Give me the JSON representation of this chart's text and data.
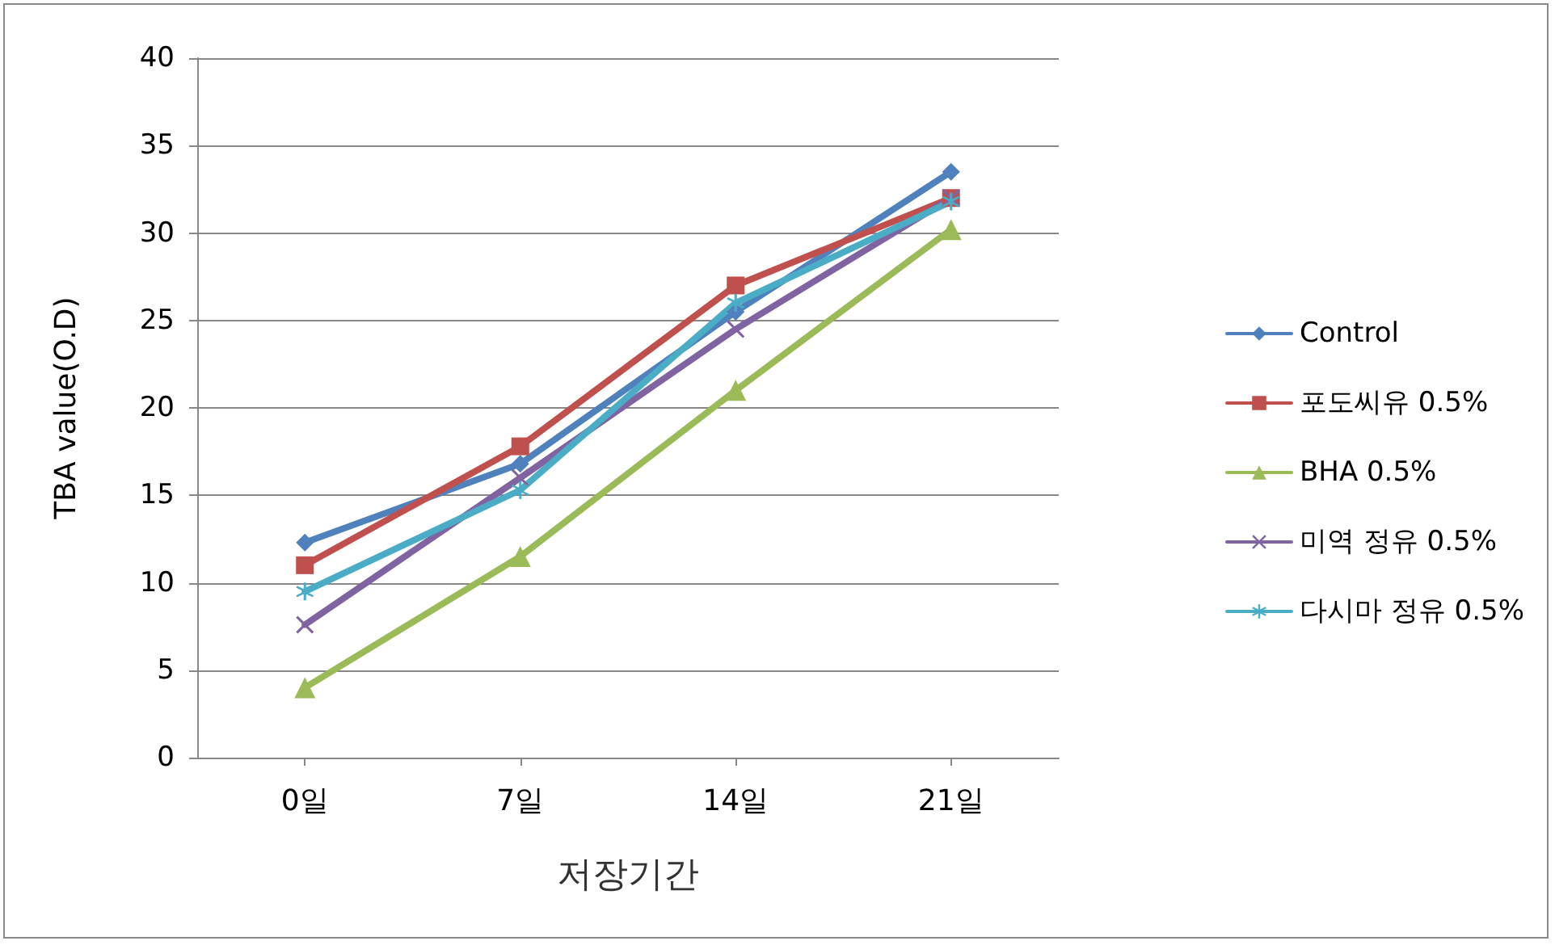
{
  "chart_data": {
    "type": "line",
    "xlabel": "저장기간",
    "ylabel": "TBA value(O.D)",
    "categories": [
      "0일",
      "7일",
      "14일",
      "21일"
    ],
    "series": [
      {
        "name": "Control",
        "color": "#4f81bd",
        "marker": "diamond",
        "values": [
          12.3,
          16.8,
          25.5,
          33.5
        ]
      },
      {
        "name": "포도씨유 0.5%",
        "color": "#c0504d",
        "marker": "square",
        "values": [
          11.0,
          17.8,
          27.0,
          32.0
        ]
      },
      {
        "name": "BHA 0.5%",
        "color": "#9bbb59",
        "marker": "triangle",
        "values": [
          4.0,
          11.5,
          21.0,
          30.2
        ]
      },
      {
        "name": "미역 정유 0.5%",
        "color": "#8064a2",
        "marker": "cross",
        "values": [
          7.6,
          16.0,
          24.5,
          32.0
        ]
      },
      {
        "name": "다시마 정유 0.5%",
        "color": "#4bacc6",
        "marker": "star",
        "values": [
          9.5,
          15.3,
          26.0,
          31.8
        ]
      }
    ],
    "ylim": [
      0,
      40
    ],
    "yticks": [
      0,
      5,
      10,
      15,
      20,
      25,
      30,
      35,
      40
    ],
    "grid": "y",
    "legend": "right",
    "line_style": "solid"
  }
}
